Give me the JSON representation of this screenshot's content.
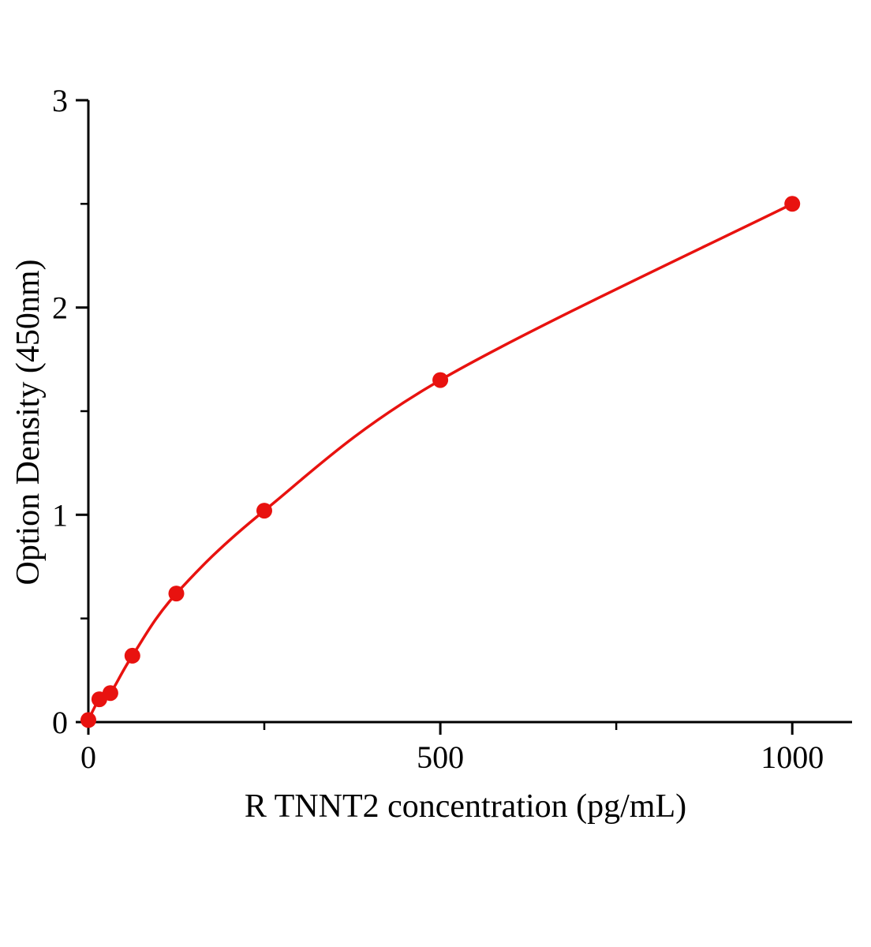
{
  "page": {
    "background": "#ffffff"
  },
  "chart_data": {
    "type": "line",
    "title": "",
    "xlabel": "R TNNT2  concentration (pg/mL)",
    "ylabel": "Option Density (450nm)",
    "series": [
      {
        "name": "R TNNT2 standard curve",
        "x": [
          0,
          15.6,
          31.25,
          62.5,
          125,
          250,
          500,
          1000
        ],
        "y": [
          0.01,
          0.11,
          0.14,
          0.32,
          0.62,
          1.02,
          1.65,
          2.5
        ],
        "color": "#e8120f",
        "marker": "circle",
        "marker_radius": 10,
        "line_width": 3.5
      }
    ],
    "xlim": [
      0,
      1085
    ],
    "ylim": [
      0,
      3
    ],
    "xticks": [
      0,
      500,
      1000
    ],
    "xminorticks": [
      250,
      750
    ],
    "yticks": [
      0,
      1,
      2,
      3
    ],
    "yminorticks": [
      0.5,
      1.5,
      2.5
    ],
    "grid": false,
    "legend": "none",
    "axis_color": "#000000",
    "tick_label_color": "#000000"
  }
}
